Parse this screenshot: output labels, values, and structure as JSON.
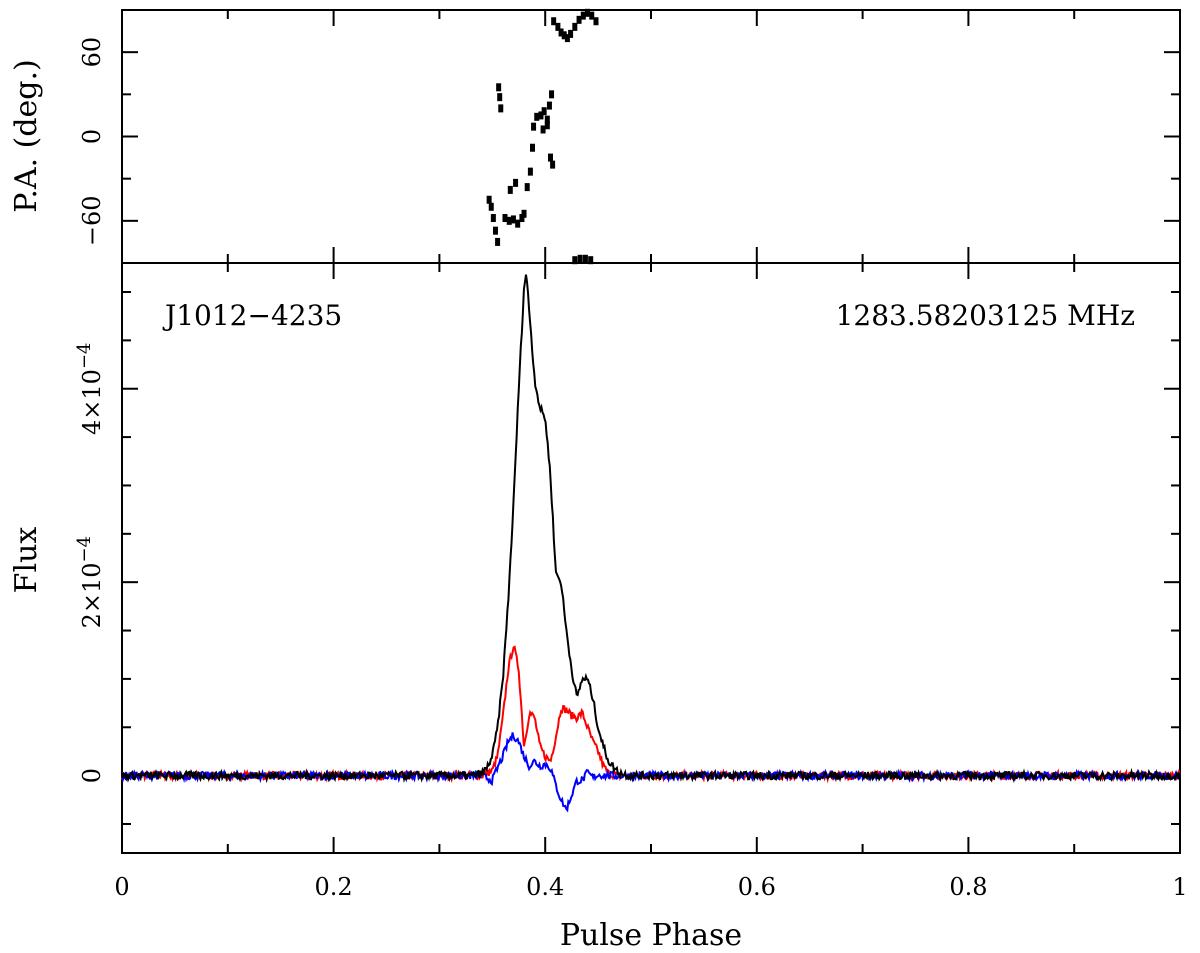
{
  "chart_data": [
    {
      "type": "scatter",
      "panel": "position-angle",
      "ylabel": "P.A. (deg.)",
      "ylim": [
        -90,
        90
      ],
      "yticks": [
        -60,
        0,
        60
      ],
      "ytick_labels": [
        "−60",
        "0",
        "60"
      ],
      "xlim": [
        0,
        1
      ],
      "series": [
        {
          "color": "#000000",
          "points": [
            [
              0.347,
              -45
            ],
            [
              0.349,
              -50
            ],
            [
              0.351,
              -58
            ],
            [
              0.353,
              -67
            ],
            [
              0.355,
              -75
            ],
            [
              0.356,
              35
            ],
            [
              0.357,
              28
            ],
            [
              0.358,
              20
            ],
            [
              0.362,
              -58
            ],
            [
              0.366,
              -60
            ],
            [
              0.37,
              -59
            ],
            [
              0.374,
              -62
            ],
            [
              0.378,
              -58
            ],
            [
              0.38,
              -55
            ],
            [
              0.367,
              -38
            ],
            [
              0.372,
              -33
            ],
            [
              0.383,
              -36
            ],
            [
              0.386,
              -25
            ],
            [
              0.388,
              -8
            ],
            [
              0.389,
              7
            ],
            [
              0.392,
              14
            ],
            [
              0.396,
              15
            ],
            [
              0.399,
              18
            ],
            [
              0.402,
              12
            ],
            [
              0.404,
              22
            ],
            [
              0.406,
              30
            ],
            [
              0.398,
              5
            ],
            [
              0.402,
              8
            ],
            [
              0.405,
              -15
            ],
            [
              0.407,
              -20
            ],
            [
              0.408,
              82
            ],
            [
              0.412,
              78
            ],
            [
              0.415,
              74
            ],
            [
              0.418,
              72
            ],
            [
              0.421,
              70
            ],
            [
              0.424,
              73
            ],
            [
              0.428,
              78
            ],
            [
              0.432,
              83
            ],
            [
              0.436,
              86
            ],
            [
              0.44,
              88
            ],
            [
              0.444,
              86
            ],
            [
              0.448,
              82
            ],
            [
              0.428,
              -88
            ],
            [
              0.433,
              -87
            ],
            [
              0.438,
              -87
            ],
            [
              0.443,
              -88
            ]
          ]
        }
      ]
    },
    {
      "type": "line",
      "panel": "flux",
      "annotation_left": "J1012−4235",
      "annotation_right": "1283.58203125 MHz",
      "xlabel": "Pulse Phase",
      "ylabel": "Flux",
      "xlim": [
        0,
        1
      ],
      "ylim": [
        -8e-05,
        0.00053
      ],
      "xticks": [
        0,
        0.2,
        0.4,
        0.6,
        0.8,
        1
      ],
      "xtick_labels": [
        "0",
        "0.2",
        "0.4",
        "0.6",
        "0.8",
        "1"
      ],
      "yticks": [
        0,
        0.0002,
        0.0004
      ],
      "ytick_labels": [
        {
          "mantissa": "0",
          "exponent": ""
        },
        {
          "mantissa": "2×10",
          "exponent": "−4"
        },
        {
          "mantissa": "4×10",
          "exponent": "−4"
        }
      ],
      "noise_amplitude": 4e-06,
      "series": [
        {
          "color": "#000000",
          "x": [
            0,
            0.33,
            0.34,
            0.345,
            0.35,
            0.355,
            0.36,
            0.365,
            0.37,
            0.375,
            0.38,
            0.382,
            0.385,
            0.39,
            0.395,
            0.4,
            0.405,
            0.41,
            0.415,
            0.42,
            0.425,
            0.43,
            0.435,
            0.44,
            0.445,
            0.45,
            0.455,
            0.46,
            0.465,
            0.47,
            0.48,
            1.0
          ],
          "y": [
            0,
            0,
            2e-06,
            8e-06,
            2e-05,
            5e-05,
            0.0001,
            0.00018,
            0.00028,
            0.0004,
            0.000505,
            0.00052,
            0.00048,
            0.00041,
            0.00038,
            0.00037,
            0.00031,
            0.00021,
            0.0002,
            0.00015,
            0.00011,
            8e-05,
            0.0001,
            0.0001,
            8e-05,
            5e-05,
            3e-05,
            1.5e-05,
            8e-06,
            3e-06,
            0,
            0
          ]
        },
        {
          "color": "#ff0000",
          "x": [
            0,
            0.34,
            0.35,
            0.355,
            0.36,
            0.365,
            0.37,
            0.375,
            0.38,
            0.385,
            0.39,
            0.395,
            0.4,
            0.405,
            0.41,
            0.415,
            0.42,
            0.425,
            0.43,
            0.435,
            0.44,
            0.445,
            0.45,
            0.455,
            0.46,
            0.47,
            1.0
          ],
          "y": [
            0,
            0,
            5e-06,
            2e-05,
            6e-05,
            0.00011,
            0.000135,
            0.00011,
            3e-05,
            6.5e-05,
            6e-05,
            3e-05,
            2e-05,
            1.5e-05,
            4e-05,
            7e-05,
            6.8e-05,
            6.2e-05,
            6e-05,
            6.5e-05,
            5e-05,
            3.5e-05,
            2.5e-05,
            1e-05,
            2e-06,
            0,
            0
          ]
        },
        {
          "color": "#0000ff",
          "x": [
            0,
            0.34,
            0.35,
            0.355,
            0.36,
            0.365,
            0.37,
            0.375,
            0.38,
            0.385,
            0.39,
            0.395,
            0.4,
            0.405,
            0.41,
            0.415,
            0.42,
            0.425,
            0.43,
            0.435,
            0.44,
            0.445,
            0.45,
            0.46,
            1.0
          ],
          "y": [
            0,
            0,
            -5e-06,
            8e-06,
            2e-05,
            3.5e-05,
            4.2e-05,
            3.5e-05,
            2e-05,
            1e-05,
            1.5e-05,
            1e-05,
            1.2e-05,
            8e-06,
            -1e-05,
            -2.5e-05,
            -3.5e-05,
            -2e-05,
            -5e-06,
            -5e-06,
            3e-06,
            -2e-06,
            1e-06,
            0,
            0
          ]
        }
      ]
    }
  ]
}
